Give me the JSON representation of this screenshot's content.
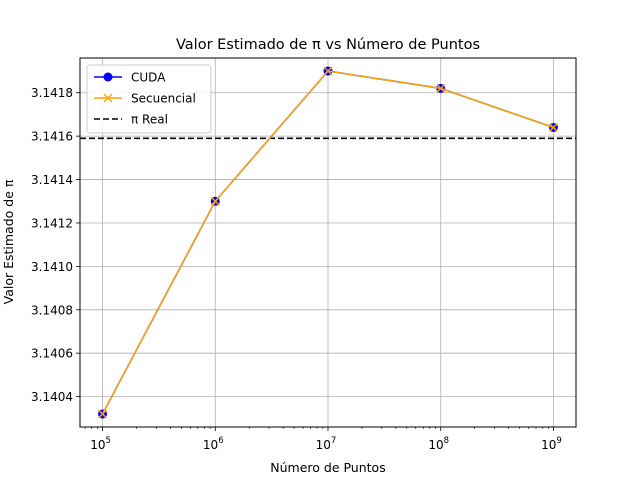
{
  "chart_data": {
    "type": "line",
    "title": "Valor Estimado de π vs Número de Puntos",
    "xlabel": "Número de Puntos",
    "ylabel": "Valor Estimado de π",
    "x_scale": "log",
    "x": [
      100000,
      1000000,
      10000000,
      100000000,
      1000000000
    ],
    "x_tick_labels": [
      {
        "base": "10",
        "exp": "5"
      },
      {
        "base": "10",
        "exp": "6"
      },
      {
        "base": "10",
        "exp": "7"
      },
      {
        "base": "10",
        "exp": "8"
      },
      {
        "base": "10",
        "exp": "9"
      }
    ],
    "ylim": [
      3.14026,
      3.14196
    ],
    "y_ticks": [
      3.1404,
      3.1406,
      3.1408,
      3.141,
      3.1412,
      3.1414,
      3.1416,
      3.1418
    ],
    "y_tick_labels": [
      "3.1404",
      "3.1406",
      "3.1408",
      "3.1410",
      "3.1412",
      "3.1414",
      "3.1416",
      "3.1418"
    ],
    "grid": true,
    "legend_position": "top-left",
    "series": [
      {
        "name": "CUDA",
        "values": [
          3.14032,
          3.1413,
          3.1419,
          3.14182,
          3.14164
        ],
        "color": "#0000ff",
        "marker": "circle"
      },
      {
        "name": "Secuencial",
        "values": [
          3.14032,
          3.1413,
          3.1419,
          3.14182,
          3.14164
        ],
        "color": "#ffa500",
        "marker": "x"
      }
    ],
    "reference_line": {
      "name": "π Real",
      "value": 3.14159,
      "color": "#000000",
      "style": "dashed"
    }
  }
}
